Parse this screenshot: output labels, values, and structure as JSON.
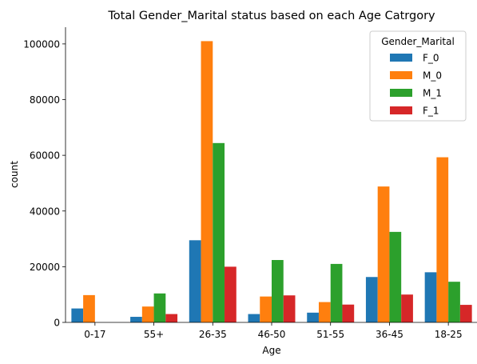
{
  "chart_data": {
    "type": "bar",
    "title": "Total Gender_Marital status based on each Age Catrgory",
    "xlabel": "Age",
    "ylabel": "count",
    "categories": [
      "0-17",
      "55+",
      "26-35",
      "46-50",
      "51-55",
      "36-45",
      "18-25"
    ],
    "ylim": [
      0,
      106000
    ],
    "yticks": [
      0,
      20000,
      40000,
      60000,
      80000,
      100000
    ],
    "grid": false,
    "legend": {
      "title": "Gender_Marital",
      "placement": "top-right"
    },
    "series": [
      {
        "name": "F_0",
        "color": "#1f77b4",
        "values": [
          5000,
          2000,
          29500,
          3000,
          3500,
          16300,
          18000
        ]
      },
      {
        "name": "M_0",
        "color": "#ff7f0e",
        "values": [
          9800,
          5700,
          101000,
          9300,
          7300,
          48800,
          59300
        ]
      },
      {
        "name": "M_1",
        "color": "#2ca02c",
        "values": [
          0,
          10400,
          64400,
          22400,
          21000,
          32500,
          14600
        ]
      },
      {
        "name": "F_1",
        "color": "#d62728",
        "values": [
          0,
          3000,
          20000,
          9700,
          6400,
          10000,
          6300
        ]
      }
    ]
  }
}
